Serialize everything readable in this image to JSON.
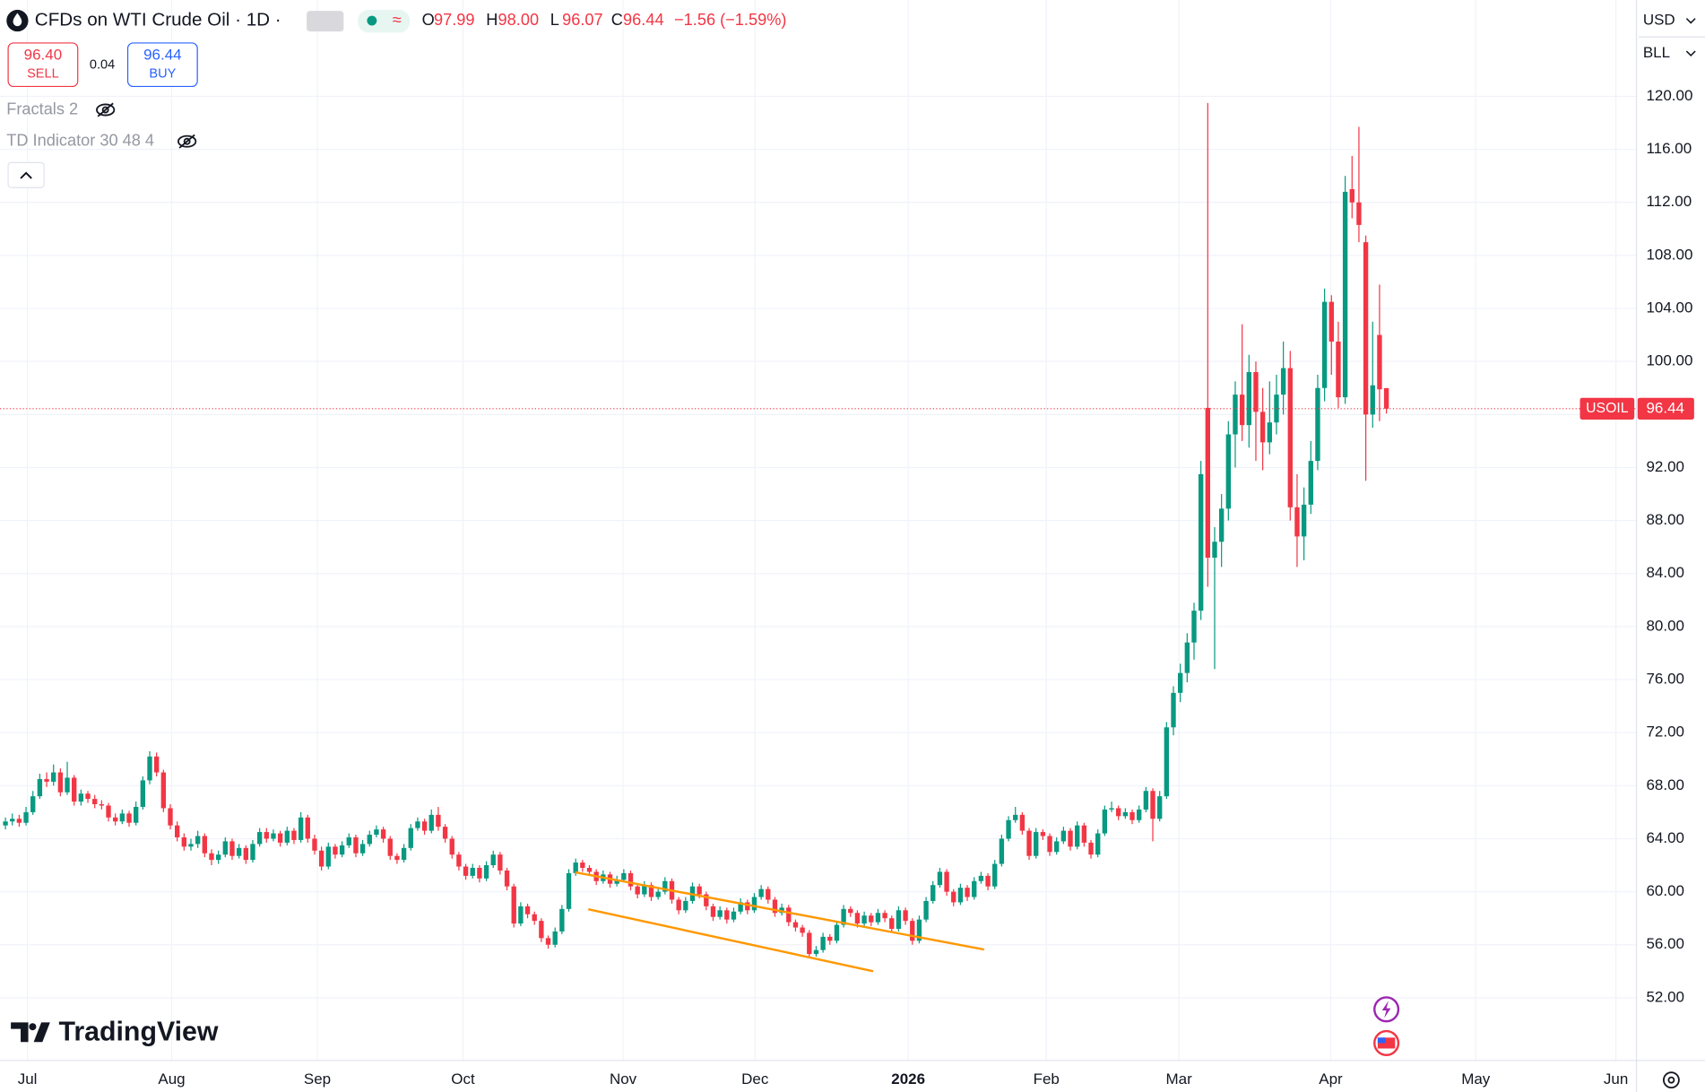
{
  "header": {
    "symbol": "CFDs on WTI Crude Oil · 1D ·",
    "ohlc": [
      {
        "label": "O",
        "value": "97.99"
      },
      {
        "label": "H",
        "value": "98.00"
      },
      {
        "label": "L",
        "value": "96.07"
      },
      {
        "label": "C",
        "value": "96.44"
      }
    ],
    "change": "−1.56 (−1.59%)"
  },
  "trade": {
    "sell_price": "96.40",
    "sell": "SELL",
    "spread": "0.04",
    "buy_price": "96.44",
    "buy": "BUY"
  },
  "indicators": [
    "Fractals 2",
    "TD Indicator 30 48 4"
  ],
  "axis_menu": {
    "currency": "USD",
    "unit": "BLL"
  },
  "logo": "TradingView",
  "chart_data": {
    "type": "candlestick",
    "symbol": "USOIL",
    "last_value": 96.44,
    "up_color": "#089981",
    "down_color": "#f23645",
    "grid": true,
    "xlim": [
      -0.79,
      237.4
    ],
    "xticks": [
      {
        "value": 3.2,
        "label": "Jul"
      },
      {
        "value": 24.2,
        "label": "Aug"
      },
      {
        "value": 45.4,
        "label": "Sep"
      },
      {
        "value": 66.6,
        "label": "Oct"
      },
      {
        "value": 89.9,
        "label": "Nov"
      },
      {
        "value": 109.1,
        "label": "Dec"
      },
      {
        "value": 131.4,
        "label": "2026"
      },
      {
        "value": 151.5,
        "label": "Feb"
      },
      {
        "value": 170.8,
        "label": "Mar"
      },
      {
        "value": 192.9,
        "label": "Apr"
      },
      {
        "value": 214.0,
        "label": "May"
      },
      {
        "value": 234.4,
        "label": "Jun"
      }
    ],
    "ylim": [
      47.27,
      127.27
    ],
    "yticks": [
      {
        "value": 52,
        "label": "52.00"
      },
      {
        "value": 56,
        "label": "56.00"
      },
      {
        "value": 60,
        "label": "60.00"
      },
      {
        "value": 64,
        "label": "64.00"
      },
      {
        "value": 68,
        "label": "68.00"
      },
      {
        "value": 72,
        "label": "72.00"
      },
      {
        "value": 76,
        "label": "76.00"
      },
      {
        "value": 80,
        "label": "80.00"
      },
      {
        "value": 84,
        "label": "84.00"
      },
      {
        "value": 88,
        "label": "88.00"
      },
      {
        "value": 92,
        "label": "92.00"
      },
      {
        "value": 96,
        "label": "96.00"
      },
      {
        "value": 100,
        "label": "100.00"
      },
      {
        "value": 104,
        "label": "104.00"
      },
      {
        "value": 108,
        "label": "108.00"
      },
      {
        "value": 112,
        "label": "112.00"
      },
      {
        "value": 116,
        "label": "116.00"
      },
      {
        "value": 120,
        "label": "120.00"
      }
    ],
    "ohlc": [
      [
        65.0,
        65.6,
        64.7,
        65.3
      ],
      [
        65.3,
        65.9,
        65.0,
        65.5
      ],
      [
        65.5,
        65.8,
        64.9,
        65.2
      ],
      [
        65.2,
        66.4,
        65.0,
        66.0
      ],
      [
        66.0,
        67.6,
        65.8,
        67.2
      ],
      [
        67.2,
        68.9,
        67.0,
        68.5
      ],
      [
        68.5,
        69.0,
        67.9,
        68.3
      ],
      [
        68.3,
        69.6,
        68.0,
        69.0
      ],
      [
        69.0,
        69.3,
        67.2,
        67.5
      ],
      [
        67.5,
        69.8,
        67.3,
        68.6
      ],
      [
        68.6,
        68.8,
        66.5,
        66.8
      ],
      [
        66.8,
        67.7,
        66.5,
        67.4
      ],
      [
        67.4,
        67.6,
        66.7,
        67.0
      ],
      [
        67.0,
        67.3,
        66.3,
        66.6
      ],
      [
        66.6,
        66.9,
        66.2,
        66.5
      ],
      [
        66.5,
        66.7,
        65.3,
        65.6
      ],
      [
        65.6,
        65.9,
        65.0,
        65.3
      ],
      [
        65.3,
        66.2,
        65.1,
        65.9
      ],
      [
        65.9,
        66.1,
        64.9,
        65.2
      ],
      [
        65.2,
        66.8,
        65.0,
        66.4
      ],
      [
        66.4,
        68.7,
        66.2,
        68.4
      ],
      [
        68.4,
        70.6,
        68.1,
        70.2
      ],
      [
        70.2,
        70.5,
        68.7,
        69.0
      ],
      [
        69.0,
        69.2,
        66.0,
        66.3
      ],
      [
        66.3,
        66.6,
        64.7,
        65.0
      ],
      [
        65.0,
        65.3,
        63.8,
        64.1
      ],
      [
        64.1,
        64.4,
        63.1,
        63.4
      ],
      [
        63.4,
        64.0,
        63.1,
        63.6
      ],
      [
        63.6,
        64.6,
        63.3,
        64.2
      ],
      [
        64.2,
        64.4,
        62.6,
        62.9
      ],
      [
        62.9,
        63.2,
        62.0,
        62.4
      ],
      [
        62.4,
        63.1,
        62.1,
        62.8
      ],
      [
        62.8,
        64.1,
        62.6,
        63.8
      ],
      [
        63.8,
        64.0,
        62.4,
        62.7
      ],
      [
        62.7,
        63.6,
        62.5,
        63.3
      ],
      [
        63.3,
        63.5,
        62.1,
        62.4
      ],
      [
        62.4,
        63.9,
        62.2,
        63.6
      ],
      [
        63.6,
        64.8,
        63.4,
        64.5
      ],
      [
        64.5,
        64.8,
        63.7,
        64.0
      ],
      [
        64.0,
        64.7,
        63.8,
        64.4
      ],
      [
        64.4,
        64.6,
        63.4,
        63.7
      ],
      [
        63.7,
        64.9,
        63.5,
        64.6
      ],
      [
        64.6,
        64.8,
        63.6,
        63.9
      ],
      [
        63.9,
        66.0,
        63.7,
        65.6
      ],
      [
        65.6,
        65.8,
        63.7,
        64.0
      ],
      [
        64.0,
        64.3,
        62.8,
        63.1
      ],
      [
        63.1,
        63.4,
        61.6,
        61.9
      ],
      [
        61.9,
        63.7,
        61.7,
        63.4
      ],
      [
        63.4,
        63.6,
        62.5,
        62.8
      ],
      [
        62.8,
        63.8,
        62.6,
        63.5
      ],
      [
        63.5,
        64.4,
        63.3,
        64.1
      ],
      [
        64.1,
        64.3,
        62.6,
        62.9
      ],
      [
        62.9,
        63.9,
        62.7,
        63.6
      ],
      [
        63.6,
        64.6,
        63.4,
        64.3
      ],
      [
        64.3,
        65.0,
        64.1,
        64.7
      ],
      [
        64.7,
        64.9,
        63.7,
        64.0
      ],
      [
        64.0,
        64.2,
        62.4,
        62.7
      ],
      [
        62.7,
        62.9,
        62.1,
        62.4
      ],
      [
        62.4,
        63.6,
        62.2,
        63.3
      ],
      [
        63.3,
        65.1,
        63.1,
        64.8
      ],
      [
        64.8,
        65.6,
        64.6,
        65.3
      ],
      [
        65.3,
        65.5,
        64.3,
        64.6
      ],
      [
        64.6,
        66.2,
        64.4,
        65.8
      ],
      [
        65.8,
        66.4,
        64.6,
        64.9
      ],
      [
        64.9,
        65.1,
        63.7,
        64.0
      ],
      [
        64.0,
        64.2,
        62.5,
        62.8
      ],
      [
        62.8,
        63.0,
        61.6,
        61.9
      ],
      [
        61.9,
        62.1,
        60.9,
        61.2
      ],
      [
        61.2,
        62.1,
        61.0,
        61.8
      ],
      [
        61.8,
        62.0,
        60.7,
        61.0
      ],
      [
        61.0,
        62.3,
        60.8,
        62.0
      ],
      [
        62.0,
        63.1,
        61.8,
        62.8
      ],
      [
        62.8,
        63.0,
        61.3,
        61.6
      ],
      [
        61.6,
        61.8,
        60.1,
        60.4
      ],
      [
        60.4,
        60.6,
        57.3,
        57.6
      ],
      [
        57.6,
        59.2,
        57.4,
        58.9
      ],
      [
        58.9,
        59.1,
        58.0,
        58.3
      ],
      [
        58.3,
        58.5,
        57.5,
        57.8
      ],
      [
        57.8,
        58.0,
        56.2,
        56.5
      ],
      [
        56.5,
        56.7,
        55.7,
        56.0
      ],
      [
        56.0,
        57.3,
        55.8,
        57.0
      ],
      [
        57.0,
        59.0,
        56.8,
        58.7
      ],
      [
        58.7,
        61.7,
        58.5,
        61.4
      ],
      [
        61.4,
        62.5,
        61.2,
        62.2
      ],
      [
        62.2,
        62.4,
        61.5,
        61.8
      ],
      [
        61.8,
        62.0,
        61.2,
        61.5
      ],
      [
        61.5,
        61.7,
        60.5,
        60.8
      ],
      [
        60.8,
        61.6,
        60.6,
        61.3
      ],
      [
        61.3,
        61.5,
        60.3,
        60.6
      ],
      [
        60.6,
        61.2,
        60.4,
        60.9
      ],
      [
        60.9,
        61.7,
        60.7,
        61.4
      ],
      [
        61.4,
        61.6,
        60.1,
        60.4
      ],
      [
        60.4,
        60.6,
        59.5,
        59.8
      ],
      [
        59.8,
        60.8,
        59.6,
        60.5
      ],
      [
        60.5,
        60.7,
        59.3,
        59.6
      ],
      [
        59.6,
        60.3,
        59.4,
        60.0
      ],
      [
        60.0,
        61.1,
        59.8,
        60.8
      ],
      [
        60.8,
        61.0,
        59.1,
        59.4
      ],
      [
        59.4,
        59.6,
        58.3,
        58.6
      ],
      [
        58.6,
        59.6,
        58.4,
        59.3
      ],
      [
        59.3,
        60.7,
        59.1,
        60.4
      ],
      [
        60.4,
        60.6,
        59.5,
        59.8
      ],
      [
        59.8,
        60.0,
        58.6,
        58.9
      ],
      [
        58.9,
        59.1,
        57.8,
        58.1
      ],
      [
        58.1,
        58.9,
        57.9,
        58.6
      ],
      [
        58.6,
        58.8,
        57.6,
        57.9
      ],
      [
        57.9,
        58.8,
        57.7,
        58.5
      ],
      [
        58.5,
        59.5,
        58.3,
        59.2
      ],
      [
        59.2,
        59.4,
        58.3,
        58.6
      ],
      [
        58.6,
        59.9,
        58.4,
        59.6
      ],
      [
        59.6,
        60.5,
        59.4,
        60.2
      ],
      [
        60.2,
        60.4,
        59.1,
        59.4
      ],
      [
        59.4,
        59.6,
        58.1,
        58.4
      ],
      [
        58.4,
        59.1,
        58.2,
        58.8
      ],
      [
        58.8,
        59.0,
        57.4,
        57.7
      ],
      [
        57.7,
        57.9,
        57.0,
        57.3
      ],
      [
        57.3,
        57.5,
        56.6,
        56.9
      ],
      [
        56.9,
        57.1,
        55.0,
        55.3
      ],
      [
        55.3,
        55.9,
        55.1,
        55.6
      ],
      [
        55.6,
        56.9,
        55.4,
        56.6
      ],
      [
        56.6,
        56.8,
        56.0,
        56.3
      ],
      [
        56.3,
        57.8,
        56.1,
        57.5
      ],
      [
        57.5,
        59.0,
        57.3,
        58.7
      ],
      [
        58.7,
        58.9,
        58.1,
        58.4
      ],
      [
        58.4,
        58.6,
        57.3,
        57.6
      ],
      [
        57.6,
        58.5,
        57.4,
        58.2
      ],
      [
        58.2,
        58.4,
        57.4,
        57.7
      ],
      [
        57.7,
        58.7,
        57.5,
        58.4
      ],
      [
        58.4,
        58.6,
        57.7,
        58.0
      ],
      [
        58.0,
        58.2,
        56.9,
        57.2
      ],
      [
        57.2,
        58.9,
        57.0,
        58.6
      ],
      [
        58.6,
        58.8,
        57.5,
        57.8
      ],
      [
        57.8,
        58.0,
        56.0,
        56.3
      ],
      [
        56.3,
        58.2,
        56.1,
        57.9
      ],
      [
        57.9,
        59.6,
        57.7,
        59.3
      ],
      [
        59.3,
        60.8,
        59.1,
        60.5
      ],
      [
        60.5,
        61.8,
        60.3,
        61.5
      ],
      [
        61.5,
        61.7,
        59.7,
        60.0
      ],
      [
        60.0,
        60.2,
        58.9,
        59.2
      ],
      [
        59.2,
        60.6,
        59.0,
        60.3
      ],
      [
        60.3,
        60.5,
        59.3,
        59.6
      ],
      [
        59.6,
        61.1,
        59.4,
        60.8
      ],
      [
        60.8,
        61.5,
        60.6,
        61.2
      ],
      [
        61.2,
        61.4,
        60.1,
        60.4
      ],
      [
        60.4,
        62.4,
        60.2,
        62.1
      ],
      [
        62.1,
        64.3,
        61.9,
        64.0
      ],
      [
        64.0,
        65.7,
        63.8,
        65.4
      ],
      [
        65.4,
        66.4,
        65.2,
        65.8
      ],
      [
        65.8,
        66.0,
        64.3,
        64.6
      ],
      [
        64.6,
        64.8,
        62.4,
        62.7
      ],
      [
        62.7,
        64.8,
        62.5,
        64.5
      ],
      [
        64.5,
        64.7,
        63.9,
        64.2
      ],
      [
        64.2,
        64.4,
        62.7,
        63.0
      ],
      [
        63.0,
        64.1,
        62.8,
        63.8
      ],
      [
        63.8,
        64.9,
        63.6,
        64.6
      ],
      [
        64.6,
        64.8,
        63.1,
        63.4
      ],
      [
        63.4,
        65.3,
        63.2,
        65.0
      ],
      [
        65.0,
        65.2,
        63.4,
        63.7
      ],
      [
        63.7,
        63.9,
        62.5,
        62.8
      ],
      [
        62.8,
        64.7,
        62.6,
        64.4
      ],
      [
        64.4,
        66.5,
        64.2,
        66.2
      ],
      [
        66.2,
        66.8,
        66.0,
        66.3
      ],
      [
        66.3,
        66.5,
        65.4,
        65.7
      ],
      [
        65.7,
        66.3,
        65.5,
        66.0
      ],
      [
        66.0,
        66.2,
        65.1,
        65.4
      ],
      [
        65.4,
        66.5,
        65.2,
        66.2
      ],
      [
        66.2,
        67.9,
        66.0,
        67.6
      ],
      [
        67.6,
        67.8,
        63.8,
        65.5
      ],
      [
        65.5,
        67.6,
        65.3,
        67.2
      ],
      [
        67.2,
        72.8,
        67.0,
        72.4
      ],
      [
        72.4,
        75.5,
        71.8,
        75.0
      ],
      [
        75.0,
        77.2,
        74.3,
        76.5
      ],
      [
        76.5,
        79.5,
        75.8,
        78.8
      ],
      [
        78.8,
        81.8,
        77.5,
        81.2
      ],
      [
        81.2,
        92.5,
        80.5,
        91.5
      ],
      [
        96.5,
        119.5,
        83.0,
        85.2
      ],
      [
        85.2,
        87.5,
        76.8,
        86.4
      ],
      [
        86.4,
        90.0,
        84.5,
        88.9
      ],
      [
        88.9,
        95.5,
        88.0,
        94.5
      ],
      [
        94.5,
        98.5,
        92.0,
        97.5
      ],
      [
        97.5,
        102.8,
        94.0,
        95.2
      ],
      [
        95.2,
        100.5,
        93.5,
        99.2
      ],
      [
        99.2,
        100.0,
        92.5,
        96.2
      ],
      [
        96.2,
        98.0,
        91.8,
        93.9
      ],
      [
        93.9,
        98.5,
        93.0,
        95.4
      ],
      [
        95.4,
        99.0,
        94.5,
        97.5
      ],
      [
        97.5,
        101.5,
        96.0,
        99.5
      ],
      [
        99.5,
        100.8,
        88.0,
        89.0
      ],
      [
        89.0,
        91.5,
        84.5,
        86.8
      ],
      [
        86.8,
        90.5,
        85.0,
        89.2
      ],
      [
        89.2,
        94.0,
        88.5,
        92.5
      ],
      [
        92.5,
        99.0,
        91.8,
        98.0
      ],
      [
        98.0,
        105.5,
        97.0,
        104.5
      ],
      [
        104.5,
        105.0,
        99.0,
        101.5
      ],
      [
        101.5,
        103.0,
        96.5,
        97.3
      ],
      [
        97.3,
        114.0,
        96.8,
        112.8
      ],
      [
        113.0,
        115.5,
        110.8,
        112.0
      ],
      [
        112.0,
        117.7,
        109.0,
        110.3
      ],
      [
        109.0,
        109.5,
        91.0,
        96.0
      ],
      [
        96.0,
        103.0,
        95.0,
        98.2
      ],
      [
        102.0,
        105.8,
        95.5,
        97.9
      ],
      [
        97.99,
        98.0,
        96.07,
        96.44
      ]
    ]
  }
}
